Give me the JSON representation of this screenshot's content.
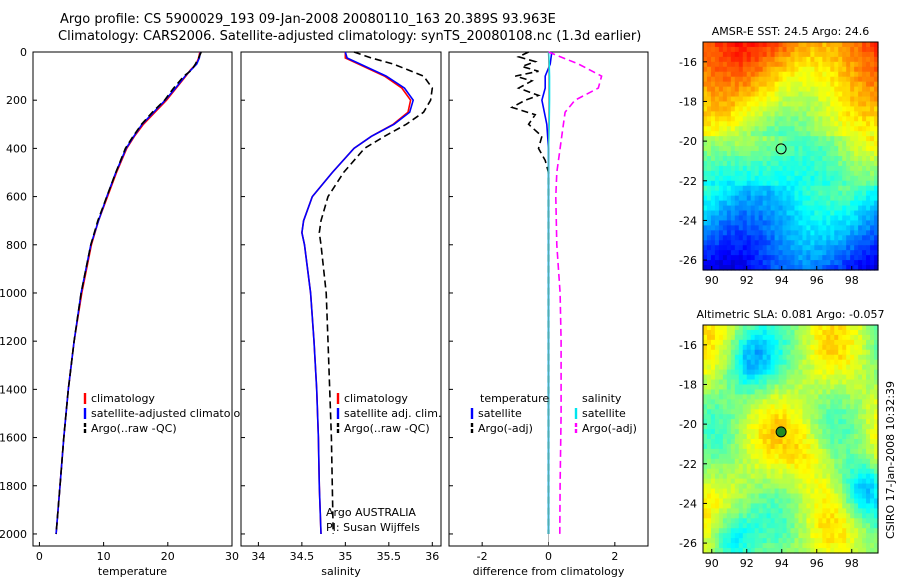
{
  "header": {
    "line1": "Argo profile: CS 5900029_193 09-Jan-2008 20080110_163 20.389S 93.963E",
    "line2": "Climatology: CARS2006. Satellite-adjusted climatology: synTS_20080108.nc (1.3d earlier)"
  },
  "colors": {
    "clim": "#ff0000",
    "sat": "#0000ff",
    "argo": "#000000",
    "sat_sal": "#00e5ee",
    "argo_sal": "#ff00ff"
  },
  "chart_data": [
    {
      "type": "line",
      "id": "temperature",
      "xlabel": "temperature",
      "ylabel": "",
      "xlim": [
        -1,
        30
      ],
      "ylim": [
        2050,
        0
      ],
      "y_inverted": true,
      "xticks": [
        0,
        10,
        20,
        30
      ],
      "yticks": [
        0,
        200,
        400,
        600,
        800,
        1000,
        1200,
        1400,
        1600,
        1800,
        2000
      ],
      "legend_items": [
        "climatology",
        "satellite-adjusted climatology",
        "Argo(..raw -QC)"
      ],
      "series": [
        {
          "name": "climatology",
          "style": "clim",
          "y": [
            0,
            25,
            50,
            75,
            100,
            150,
            200,
            250,
            300,
            350,
            400,
            500,
            600,
            700,
            800,
            1000,
            1200,
            1400,
            1600,
            1800,
            2000
          ],
          "values": [
            25.0,
            24.8,
            24.4,
            23.5,
            22.8,
            21.3,
            19.8,
            18.0,
            16.2,
            14.8,
            13.6,
            12.0,
            10.6,
            9.2,
            8.1,
            6.6,
            5.4,
            4.5,
            3.8,
            3.2,
            2.6
          ]
        },
        {
          "name": "satellite-adjusted climatology",
          "style": "sat",
          "y": [
            0,
            25,
            50,
            75,
            100,
            150,
            200,
            250,
            300,
            350,
            400,
            500,
            600,
            700,
            800,
            1000,
            1200,
            1400,
            1600,
            1800,
            2000
          ],
          "values": [
            25.1,
            24.9,
            24.5,
            23.6,
            22.7,
            21.2,
            19.6,
            17.8,
            16.0,
            14.7,
            13.5,
            11.9,
            10.5,
            9.2,
            8.0,
            6.5,
            5.4,
            4.5,
            3.8,
            3.2,
            2.6
          ]
        },
        {
          "name": "Argo(..raw -QC)",
          "style": "argo",
          "y": [
            0,
            25,
            50,
            75,
            100,
            150,
            200,
            250,
            300,
            350,
            400,
            500,
            600,
            700,
            800,
            1000,
            1200,
            1400,
            1600,
            1800,
            2000
          ],
          "values": [
            25.2,
            24.8,
            24.3,
            23.7,
            22.5,
            20.9,
            19.5,
            17.6,
            15.9,
            14.6,
            13.4,
            11.9,
            10.5,
            9.1,
            8.0,
            6.5,
            5.4,
            4.5,
            3.8,
            3.2,
            2.6
          ]
        }
      ]
    },
    {
      "type": "line",
      "id": "salinity",
      "xlabel": "salinity",
      "ylabel": "",
      "xlim": [
        33.8,
        36.1
      ],
      "ylim": [
        2050,
        0
      ],
      "y_inverted": true,
      "xticks": [
        34,
        34.5,
        35,
        35.5,
        36
      ],
      "yticks": [
        0,
        200,
        400,
        600,
        800,
        1000,
        1200,
        1400,
        1600,
        1800,
        2000
      ],
      "legend_items": [
        "climatology",
        "satellite adj. clim.",
        "Argo(..raw -QC)"
      ],
      "annotations": [
        "Argo AUSTRALIA",
        "PI: Susan Wijffels"
      ],
      "series": [
        {
          "name": "climatology",
          "style": "clim",
          "y": [
            0,
            25,
            50,
            100,
            150,
            200,
            250,
            300,
            350,
            400,
            500,
            600,
            700,
            750,
            800,
            1000,
            1200,
            1400,
            1600,
            1800,
            2000
          ],
          "values": [
            35.0,
            35.0,
            35.15,
            35.45,
            35.65,
            35.75,
            35.72,
            35.55,
            35.3,
            35.1,
            34.85,
            34.62,
            34.52,
            34.5,
            34.53,
            34.6,
            34.64,
            34.67,
            34.69,
            34.7,
            34.72
          ]
        },
        {
          "name": "satellite adj. clim.",
          "style": "sat",
          "y": [
            0,
            25,
            50,
            100,
            150,
            200,
            250,
            300,
            350,
            400,
            500,
            600,
            700,
            750,
            800,
            1000,
            1200,
            1400,
            1600,
            1800,
            2000
          ],
          "values": [
            35.0,
            35.02,
            35.17,
            35.47,
            35.68,
            35.78,
            35.74,
            35.56,
            35.3,
            35.1,
            34.85,
            34.62,
            34.52,
            34.5,
            34.53,
            34.6,
            34.64,
            34.67,
            34.69,
            34.7,
            34.72
          ]
        },
        {
          "name": "Argo(..raw -QC)",
          "style": "argo",
          "y": [
            0,
            25,
            50,
            100,
            150,
            200,
            250,
            300,
            350,
            400,
            500,
            600,
            700,
            750,
            800,
            1000,
            1200,
            1400,
            1600,
            1800,
            2000
          ],
          "values": [
            35.1,
            35.3,
            35.55,
            35.9,
            36.0,
            35.98,
            35.9,
            35.7,
            35.45,
            35.22,
            34.98,
            34.8,
            34.72,
            34.7,
            34.72,
            34.78,
            34.8,
            34.82,
            34.84,
            34.85,
            34.86
          ]
        }
      ]
    },
    {
      "type": "line",
      "id": "difference",
      "xlabel": "difference from climatology",
      "ylabel": "",
      "xlim": [
        -3,
        3
      ],
      "ylim": [
        2050,
        0
      ],
      "y_inverted": true,
      "xticks": [
        -2,
        0,
        2
      ],
      "yticks": [
        0,
        200,
        400,
        600,
        800,
        1000,
        1200,
        1400,
        1600,
        1800,
        2000
      ],
      "legend_groups": [
        {
          "heading": "temperature",
          "items": [
            "satellite",
            "Argo(-adj)"
          ]
        },
        {
          "heading": "salinity",
          "items": [
            "satellite",
            "Argo(-adj)"
          ]
        }
      ],
      "series": [
        {
          "name": "temperature satellite",
          "style": "sat",
          "y": [
            0,
            50,
            100,
            150,
            200,
            300,
            400,
            500,
            600,
            800,
            1000,
            1500,
            2000
          ],
          "values": [
            0.1,
            0.05,
            -0.1,
            -0.1,
            -0.2,
            -0.05,
            0.0,
            0.0,
            0.0,
            0.0,
            0.0,
            0.0,
            0.0
          ]
        },
        {
          "name": "temperature Argo(-adj)",
          "style": "argo",
          "y": [
            0,
            20,
            40,
            60,
            80,
            100,
            120,
            150,
            180,
            200,
            230,
            260,
            300,
            350,
            400,
            450,
            500,
            600,
            700,
            800,
            1000,
            1200,
            1500,
            1800,
            2000
          ],
          "values": [
            -0.6,
            -0.9,
            -0.4,
            -0.8,
            -0.3,
            -1.0,
            -0.5,
            -0.9,
            -0.3,
            -0.7,
            -1.1,
            -0.4,
            -0.6,
            -0.2,
            -0.3,
            -0.1,
            0.0,
            0.0,
            0.0,
            0.0,
            0.0,
            0.0,
            0.0,
            0.0,
            0.0
          ]
        },
        {
          "name": "salinity satellite",
          "style": "sat_sal",
          "y": [
            0,
            50,
            100,
            150,
            200,
            300,
            400,
            600,
            800,
            1000,
            1500,
            2000
          ],
          "values": [
            0.0,
            0.02,
            0.03,
            0.03,
            0.03,
            0.02,
            0.0,
            0.0,
            0.0,
            0.0,
            0.0,
            0.0
          ]
        },
        {
          "name": "salinity Argo(-adj)",
          "style": "argo_sal",
          "y": [
            0,
            50,
            100,
            150,
            200,
            250,
            300,
            400,
            500,
            600,
            800,
            1000,
            1200,
            1500,
            1800,
            2000
          ],
          "values": [
            0.0,
            0.9,
            1.6,
            1.5,
            0.8,
            0.5,
            0.45,
            0.35,
            0.25,
            0.22,
            0.25,
            0.35,
            0.38,
            0.38,
            0.35,
            0.34
          ]
        }
      ]
    },
    {
      "type": "heatmap",
      "id": "sst-map",
      "title": "AMSR-E SST: 24.5 Argo: 24.6",
      "xlim": [
        89.5,
        99.5
      ],
      "ylim": [
        -26.5,
        -15
      ],
      "xticks": [
        90,
        92,
        94,
        96,
        98
      ],
      "yticks": [
        -16,
        -18,
        -20,
        -22,
        -24,
        -26
      ],
      "argo_position": {
        "lon": 93.963,
        "lat": -20.389
      }
    },
    {
      "type": "heatmap",
      "id": "sla-map",
      "title": "Altimetric SLA: 0.081 Argo: -0.057",
      "xlim": [
        89.5,
        99.5
      ],
      "ylim": [
        -26.5,
        -15
      ],
      "xticks": [
        90,
        92,
        94,
        96,
        98
      ],
      "yticks": [
        -16,
        -18,
        -20,
        -22,
        -24,
        -26
      ],
      "argo_position": {
        "lon": 93.963,
        "lat": -20.389
      }
    }
  ],
  "footer": {
    "stamp": "CSIRO 17-Jan-2008 10:32:39"
  }
}
